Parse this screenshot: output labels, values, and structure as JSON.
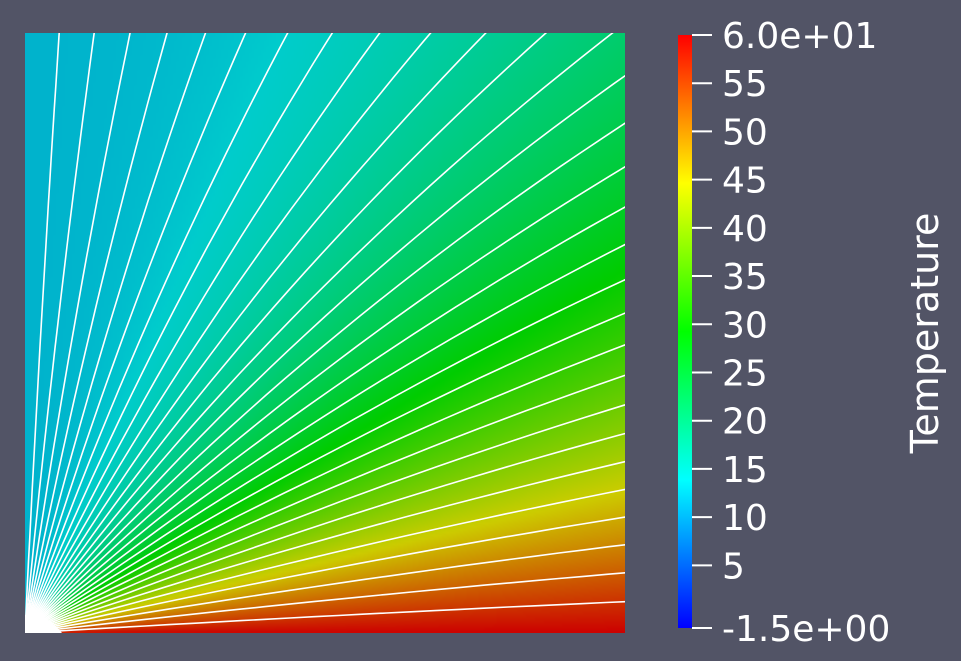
{
  "chart_data": {
    "type": "heatmap",
    "scalar_name": "Temperature",
    "range": [
      -1.5,
      60.0
    ],
    "colorbar": {
      "title": "Temperature",
      "max_label": "6.0e+01",
      "min_label": "-1.5e+00",
      "ticks": [
        {
          "value": 55,
          "label": "55"
        },
        {
          "value": 50,
          "label": "50"
        },
        {
          "value": 45,
          "label": "45"
        },
        {
          "value": 40,
          "label": "40"
        },
        {
          "value": 35,
          "label": "35"
        },
        {
          "value": 30,
          "label": "30"
        },
        {
          "value": 25,
          "label": "25"
        },
        {
          "value": 20,
          "label": "20"
        },
        {
          "value": 15,
          "label": "15"
        },
        {
          "value": 10,
          "label": "10"
        },
        {
          "value": 5,
          "label": "5"
        }
      ],
      "colormap": [
        {
          "t": 0.0,
          "color": "#0000ff"
        },
        {
          "t": 0.25,
          "color": "#00ffff"
        },
        {
          "t": 0.5,
          "color": "#00ff00"
        },
        {
          "t": 0.75,
          "color": "#ffff00"
        },
        {
          "t": 1.0,
          "color": "#ff0000"
        }
      ]
    },
    "field": {
      "description_values": "temperature ~12 along left edge rising toward ~60 along bottom edge, angular gradient around bottom-left corner",
      "left_edge_value": 12,
      "top_right_value": 30,
      "bottom_edge_value": 60,
      "contour_lines": 30
    }
  }
}
